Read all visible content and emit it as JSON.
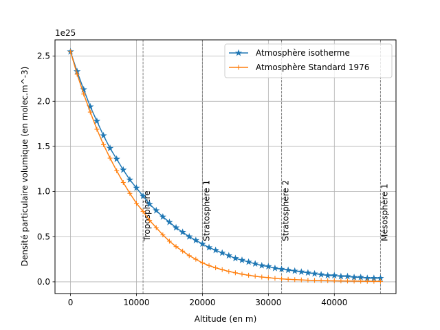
{
  "chart_data": {
    "type": "line",
    "title": "",
    "xlabel": "Altitude (en m)",
    "ylabel": "Densité particulaire volumique (en molec.m^-3)",
    "y_offset_label": "1e25",
    "xlim": [
      -2350,
      49350
    ],
    "ylim": [
      -0.13,
      2.68
    ],
    "xticks": [
      0,
      10000,
      20000,
      30000,
      40000
    ],
    "xtick_labels": [
      "0",
      "10000",
      "20000",
      "30000",
      "40000"
    ],
    "yticks": [
      0.0,
      0.5,
      1.0,
      1.5,
      2.0,
      2.5
    ],
    "ytick_labels": [
      "0.0",
      "0.5",
      "1.0",
      "1.5",
      "2.0",
      "2.5"
    ],
    "grid": true,
    "legend_position": "top-right",
    "x_step": 1000,
    "x_max": 47000,
    "series": [
      {
        "name": "Atmosphère isotherme",
        "color": "#1f77b4",
        "marker": "star",
        "values": [
          2.55,
          2.33,
          2.13,
          1.94,
          1.78,
          1.62,
          1.48,
          1.36,
          1.24,
          1.13,
          1.04,
          0.95,
          0.86,
          0.79,
          0.72,
          0.66,
          0.6,
          0.55,
          0.5,
          0.46,
          0.42,
          0.38,
          0.35,
          0.32,
          0.29,
          0.26,
          0.24,
          0.22,
          0.2,
          0.18,
          0.17,
          0.15,
          0.14,
          0.13,
          0.12,
          0.11,
          0.1,
          0.09,
          0.08,
          0.07,
          0.07,
          0.06,
          0.06,
          0.05,
          0.05,
          0.04,
          0.04,
          0.04
        ]
      },
      {
        "name": "Atmosphère Standard 1976",
        "color": "#ff7f0e",
        "marker": "plus",
        "values": [
          2.55,
          2.3,
          2.08,
          1.88,
          1.69,
          1.52,
          1.37,
          1.23,
          1.1,
          0.98,
          0.87,
          0.78,
          0.68,
          0.6,
          0.52,
          0.45,
          0.39,
          0.34,
          0.29,
          0.25,
          0.21,
          0.18,
          0.155,
          0.135,
          0.115,
          0.1,
          0.085,
          0.073,
          0.062,
          0.053,
          0.046,
          0.039,
          0.033,
          0.028,
          0.024,
          0.021,
          0.018,
          0.016,
          0.014,
          0.012,
          0.011,
          0.01,
          0.009,
          0.008,
          0.007,
          0.006,
          0.006,
          0.005
        ]
      }
    ],
    "vlines": [
      {
        "x": 11000,
        "label": "Troposphère"
      },
      {
        "x": 20000,
        "label": "Stratosphère 1"
      },
      {
        "x": 32000,
        "label": "Stratosphère 2"
      },
      {
        "x": 47000,
        "label": "Mésosphère 1"
      }
    ],
    "vline_label_y": 0.45,
    "vline_color": "#808080"
  }
}
